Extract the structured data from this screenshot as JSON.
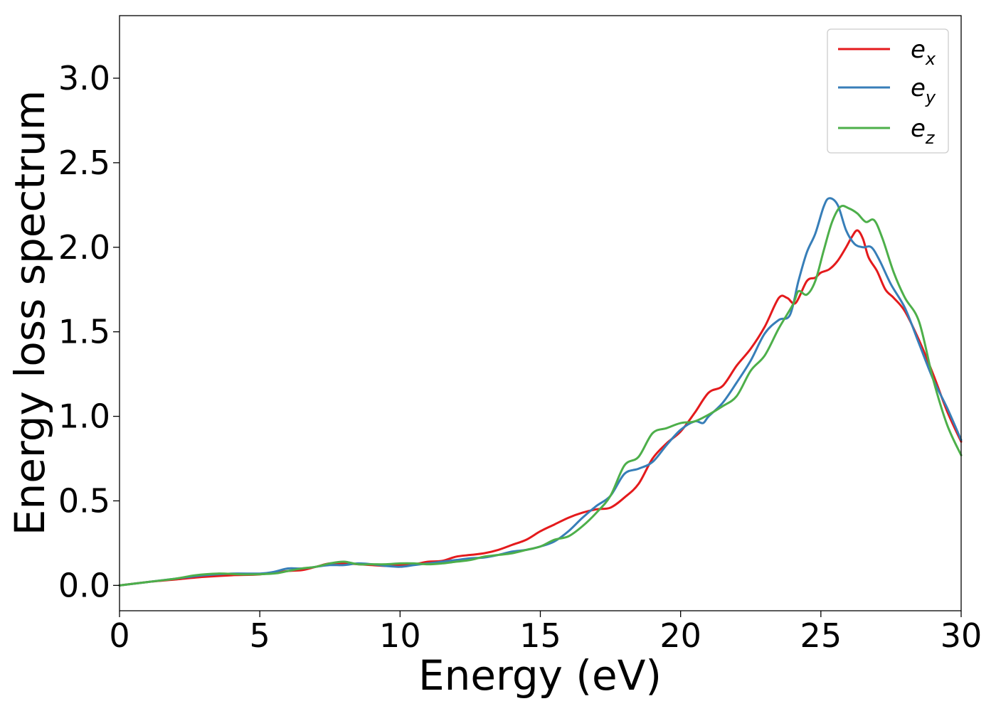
{
  "chart_data": {
    "type": "line",
    "title": "",
    "xlabel": "Energy (eV)",
    "ylabel": "Energy loss spectrum",
    "xlim": [
      0,
      30
    ],
    "ylim": [
      -0.15,
      3.37
    ],
    "grid": false,
    "legend_position": "top-right",
    "x_ticks": [
      0,
      5,
      10,
      15,
      20,
      25,
      30
    ],
    "x_tick_labels": [
      "0",
      "5",
      "10",
      "15",
      "20",
      "25",
      "30"
    ],
    "y_ticks": [
      0.0,
      0.5,
      1.0,
      1.5,
      2.0,
      2.5,
      3.0
    ],
    "y_tick_labels": [
      "0.0",
      "0.5",
      "1.0",
      "1.5",
      "2.0",
      "2.5",
      "3.0"
    ],
    "series": [
      {
        "name": "e_x",
        "label_base": "e",
        "label_sub": "x",
        "color": "#e41a1c",
        "x": [
          0,
          1,
          2,
          3,
          4,
          5,
          6,
          6.5,
          7,
          7.5,
          8,
          8.5,
          9,
          9.5,
          10,
          10.5,
          11,
          11.5,
          12,
          12.5,
          13,
          13.5,
          14,
          14.5,
          15,
          15.5,
          16,
          16.5,
          17,
          17.5,
          18,
          18.5,
          19,
          19.5,
          20,
          20.5,
          21,
          21.5,
          22,
          22.5,
          23,
          23.5,
          23.8,
          24.1,
          24.5,
          24.8,
          25,
          25.3,
          25.6,
          25.9,
          26.1,
          26.3,
          26.5,
          26.7,
          27,
          27.3,
          27.6,
          28,
          28.5,
          29,
          29.5,
          30
        ],
        "values": [
          0.0,
          0.02,
          0.035,
          0.05,
          0.06,
          0.065,
          0.085,
          0.09,
          0.11,
          0.13,
          0.13,
          0.125,
          0.12,
          0.115,
          0.12,
          0.125,
          0.14,
          0.145,
          0.17,
          0.18,
          0.19,
          0.21,
          0.24,
          0.27,
          0.32,
          0.36,
          0.4,
          0.43,
          0.45,
          0.46,
          0.52,
          0.6,
          0.75,
          0.84,
          0.91,
          1.02,
          1.14,
          1.18,
          1.3,
          1.4,
          1.53,
          1.7,
          1.7,
          1.67,
          1.8,
          1.82,
          1.85,
          1.87,
          1.92,
          2.0,
          2.06,
          2.1,
          2.05,
          1.94,
          1.86,
          1.75,
          1.7,
          1.62,
          1.45,
          1.25,
          1.03,
          0.85
        ]
      },
      {
        "name": "e_y",
        "label_base": "e",
        "label_sub": "y",
        "color": "#377eb8",
        "x": [
          0,
          1,
          2,
          3,
          4,
          5,
          5.5,
          6,
          6.5,
          7,
          7.5,
          8,
          8.5,
          9,
          9.5,
          10,
          10.5,
          11,
          11.5,
          12,
          12.5,
          13,
          13.5,
          14,
          14.5,
          15,
          15.5,
          16,
          16.5,
          17,
          17.5,
          18,
          18.5,
          19,
          19.5,
          20,
          20.5,
          20.8,
          21,
          21.5,
          22,
          22.5,
          23,
          23.5,
          23.9,
          24.2,
          24.5,
          24.8,
          25.1,
          25.3,
          25.6,
          25.9,
          26.2,
          26.5,
          26.8,
          27.1,
          27.5,
          28,
          28.5,
          29,
          29.5,
          30
        ],
        "values": [
          0.0,
          0.02,
          0.04,
          0.06,
          0.07,
          0.07,
          0.08,
          0.1,
          0.1,
          0.11,
          0.12,
          0.12,
          0.13,
          0.125,
          0.115,
          0.11,
          0.12,
          0.13,
          0.14,
          0.15,
          0.16,
          0.165,
          0.18,
          0.2,
          0.21,
          0.23,
          0.26,
          0.32,
          0.4,
          0.47,
          0.53,
          0.66,
          0.69,
          0.73,
          0.83,
          0.92,
          0.97,
          0.96,
          1.0,
          1.08,
          1.2,
          1.33,
          1.49,
          1.57,
          1.6,
          1.8,
          1.97,
          2.08,
          2.24,
          2.29,
          2.25,
          2.1,
          2.02,
          2.0,
          2.0,
          1.92,
          1.78,
          1.64,
          1.43,
          1.22,
          1.05,
          0.86
        ]
      },
      {
        "name": "e_z",
        "label_base": "e",
        "label_sub": "z",
        "color": "#4daf4a",
        "x": [
          0,
          1,
          2,
          2.7,
          3.5,
          4.5,
          5.5,
          6,
          6.5,
          7,
          7.5,
          8,
          8.5,
          9,
          9.5,
          10,
          10.5,
          11,
          11.5,
          12,
          12.5,
          13,
          13.5,
          14,
          14.5,
          15,
          15.5,
          16,
          16.5,
          17,
          17.5,
          18,
          18.5,
          19,
          19.5,
          20,
          20.5,
          21,
          21.5,
          22,
          22.5,
          23,
          23.5,
          24,
          24.2,
          24.5,
          24.8,
          25.1,
          25.4,
          25.7,
          26,
          26.3,
          26.6,
          26.9,
          27.2,
          27.6,
          28,
          28.5,
          29,
          29.5,
          30
        ],
        "values": [
          0.0,
          0.02,
          0.04,
          0.06,
          0.07,
          0.065,
          0.07,
          0.085,
          0.1,
          0.11,
          0.13,
          0.14,
          0.125,
          0.125,
          0.125,
          0.13,
          0.13,
          0.125,
          0.13,
          0.14,
          0.15,
          0.17,
          0.18,
          0.19,
          0.21,
          0.23,
          0.27,
          0.29,
          0.35,
          0.43,
          0.53,
          0.71,
          0.76,
          0.9,
          0.93,
          0.96,
          0.97,
          1.01,
          1.06,
          1.12,
          1.27,
          1.36,
          1.52,
          1.66,
          1.74,
          1.72,
          1.8,
          1.98,
          2.15,
          2.24,
          2.23,
          2.2,
          2.15,
          2.16,
          2.05,
          1.85,
          1.7,
          1.56,
          1.22,
          0.95,
          0.77
        ]
      }
    ]
  }
}
